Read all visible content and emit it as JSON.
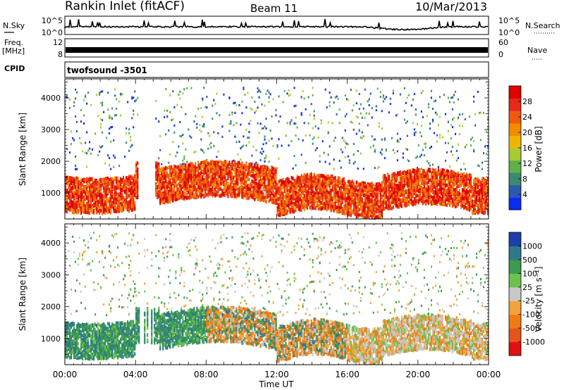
{
  "header": {
    "station": "Rankin Inlet (fitACF)",
    "beam": "Beam 11",
    "date": "10/Mar/2013"
  },
  "side_labels": {
    "nsky": "N.Sky",
    "freq_top": "Freq.",
    "freq_unit": "[MHz]",
    "cpid": "CPID",
    "nsearch": "N.Search",
    "nave": "Nave"
  },
  "noise_panel": {
    "left_ticks": [
      "10^5",
      "10^0"
    ],
    "right_ticks": [
      "10^5",
      "10^0"
    ]
  },
  "freq_panel": {
    "left_ticks": [
      "12",
      "8"
    ],
    "right_ticks": [
      "60",
      "0"
    ]
  },
  "cpid_panel": {
    "label": "twofsound  -3501"
  },
  "chart_data": [
    {
      "type": "heatmap",
      "name": "power",
      "ylabel": "Slant Range [km]",
      "yticks": [
        1000,
        2000,
        3000,
        4000
      ],
      "ylim": [
        180,
        4600
      ],
      "xlim": [
        0,
        24
      ],
      "colorbar_label": "Power [dB]",
      "colorbar_ticks": [
        4,
        8,
        12,
        16,
        20,
        24,
        28
      ],
      "colorbar_colors": [
        "#0a2cf0",
        "#2c58b0",
        "#3a8a6e",
        "#5fb04b",
        "#a6cb34",
        "#f1b400",
        "#f48a00",
        "#ef5a10",
        "#e52a1a",
        "#e00000"
      ]
    },
    {
      "type": "heatmap",
      "name": "velocity",
      "ylabel": "Slant Range [km]",
      "yticks": [
        1000,
        2000,
        3000,
        4000
      ],
      "ylim": [
        180,
        4600
      ],
      "xlim": [
        0,
        24
      ],
      "xlabel": "Time UT",
      "xticks": [
        "00:00",
        "04:00",
        "08:00",
        "12:00",
        "16:00",
        "20:00",
        "00:00"
      ],
      "colorbar_label": "Velocity [m s⁻¹]",
      "colorbar_ticks": [
        1000,
        500,
        100,
        25,
        -25,
        -100,
        -500,
        -1000
      ],
      "colorbar_colors": [
        "#1f3fa8",
        "#2f7a8a",
        "#3c9a52",
        "#6cc24a",
        "#c8c8c8",
        "#f3a33a",
        "#ef7b13",
        "#e8531d",
        "#e01010"
      ]
    }
  ]
}
